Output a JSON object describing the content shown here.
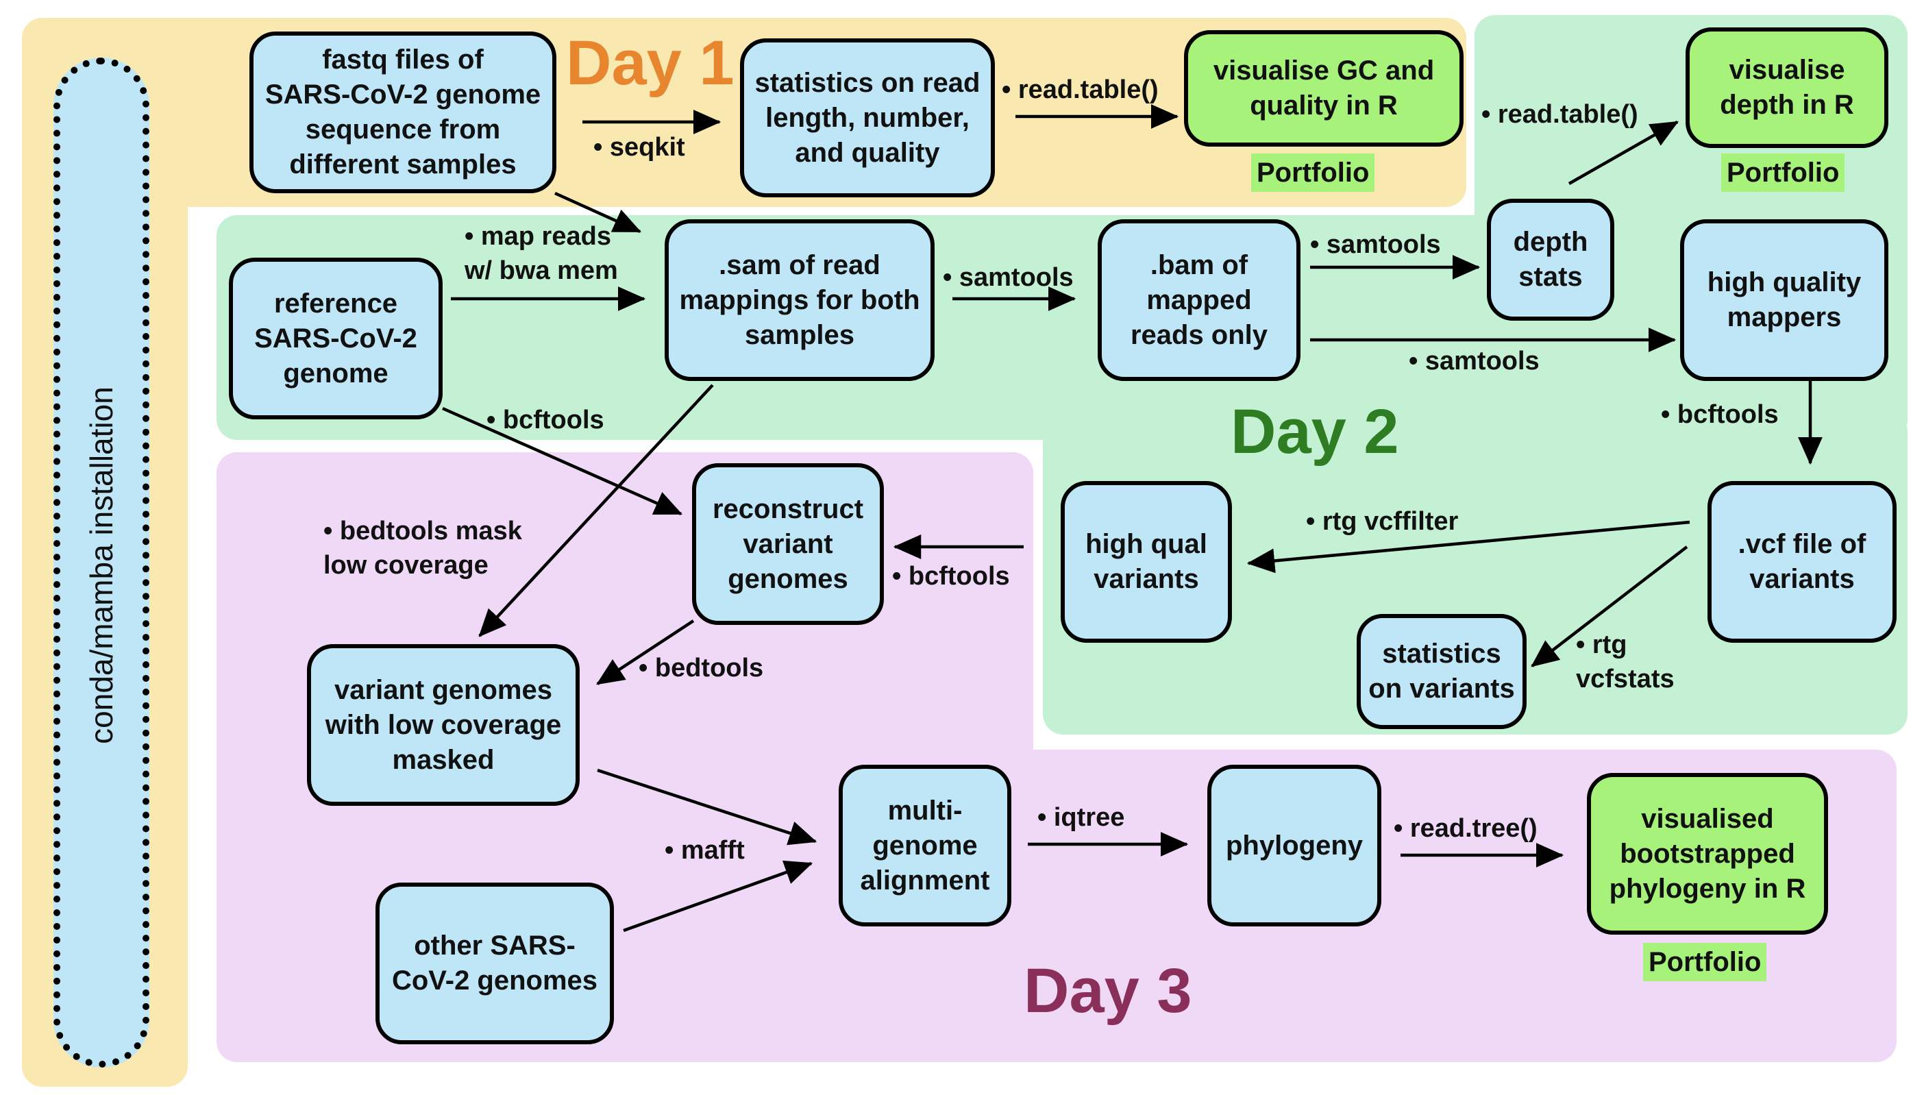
{
  "colors": {
    "day1_bg": "#f9e9b0",
    "day2_bg": "#c4f1d4",
    "day3_bg": "#efd9f7",
    "node_fill": "#bfe6f7",
    "output_fill": "#a6f27a",
    "day1_text": "#e8862f",
    "day2_text": "#2f7d22",
    "day3_text": "#8a2f5a"
  },
  "install": {
    "label": "conda/mamba installation"
  },
  "days": {
    "day1": "Day 1",
    "day2": "Day 2",
    "day3": "Day 3"
  },
  "nodes": {
    "fastq": "fastq files of\nSARS-CoV-2 genome\nsequence from\ndifferent samples",
    "read_stats": "statistics on read\nlength, number,\nand quality",
    "visualise_gc": "visualise GC and\nquality  in R",
    "reference": "reference\nSARS-CoV-2\ngenome",
    "sam": ".sam of read\nmappings for both\nsamples",
    "bam": ".bam of\nmapped\nreads only",
    "depth_stats": "depth\nstats",
    "visualise_depth": "visualise\ndepth in R",
    "high_quality_mappers": "high quality\nmappers",
    "vcf": ".vcf file of\nvariants",
    "high_qual_variants": "high qual\nvariants",
    "variant_stats": "statistics\non variants",
    "reconstruct": "reconstruct\nvariant\ngenomes",
    "masked": "variant genomes\nwith low coverage\nmasked",
    "other_genomes": "other SARS-\nCoV-2 genomes",
    "msa": "multi-\ngenome\nalignment",
    "phylogeny": "phylogeny",
    "visualised_phylogeny": "visualised\nbootstrapped\nphylogeny in R"
  },
  "portfolio": {
    "p1": "Portfolio",
    "p2": "Portfolio",
    "p3": "Portfolio"
  },
  "edge_labels": {
    "seqkit": "•  seqkit",
    "read_table_1": "•  read.table()",
    "read_table_2": "•  read.table()",
    "map_reads": "•  map reads\n    w/ bwa mem",
    "samtools_1": "•  samtools",
    "samtools_2": "•  samtools",
    "samtools_3": "•  samtools",
    "bcftools_1": "•  bcftools",
    "bcftools_2": "•  bcftools",
    "bcftools_3": "•  bcftools",
    "bedtools_mask": "•  bedtools mask\n    low coverage",
    "bedtools": "•  bedtools",
    "rtg_vcffilter": "•  rtg vcffilter",
    "rtg_vcfstats": "•  rtg\n    vcfstats",
    "mafft": "•  mafft",
    "iqtree": "•  iqtree",
    "read_tree": "•  read.tree()"
  }
}
